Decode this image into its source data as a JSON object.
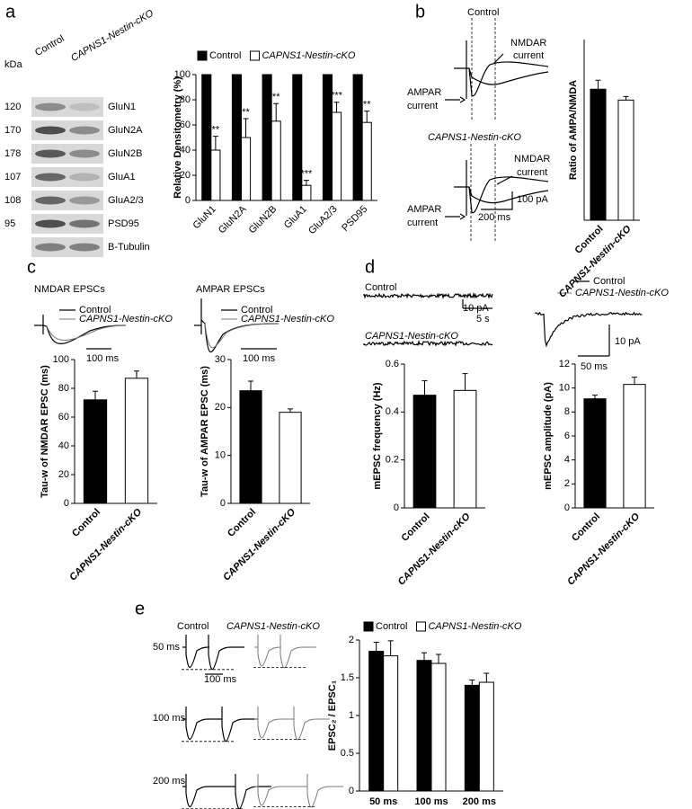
{
  "panel_labels": [
    "a",
    "b",
    "c",
    "d",
    "e"
  ],
  "blot": {
    "header": [
      "Control",
      "CAPNS1-Nestin-cKO"
    ],
    "unit": "kDa",
    "kda": [
      "120",
      "170",
      "178",
      "107",
      "108",
      "95"
    ],
    "proteins": [
      "GluN1",
      "GluN2A",
      "GluN2B",
      "GluA1",
      "GluA2/3",
      "PSD95",
      "B-Tubulin"
    ]
  },
  "panel_b_traces": [
    "Control",
    "NMDAR",
    "current",
    "AMPAR",
    "current",
    "CAPNS1-Nestin-cKO",
    "NMDAR",
    "current",
    "AMPAR",
    "current",
    "100 pA",
    "200 ms"
  ],
  "panel_c_traces": {
    "titles": [
      "NMDAR EPSCs",
      "AMPAR EPSCs"
    ],
    "legend": [
      "Control",
      "CAPNS1-Nestin-cKO"
    ],
    "scale": "100 ms"
  },
  "panel_d_traces": [
    "Control",
    "CAPNS1-Nestin-cKO",
    "10 pA",
    "5 s",
    "Control",
    "CAPNS1-Nestin-cKO",
    "10 pA",
    "50 ms"
  ],
  "panel_e_traces": {
    "headers": [
      "Control",
      "CAPNS1-Nestin-cKO"
    ],
    "intervals": [
      "50 ms",
      "100 ms",
      "200 ms"
    ],
    "scale": "100 ms"
  },
  "chart_data": [
    {
      "type": "bar",
      "ylabel": "Relative Densitometry (%)",
      "categories": [
        "GluN1",
        "GluN2A",
        "GluN2B",
        "GluA1",
        "GluA2/3",
        "PSD95"
      ],
      "series": [
        {
          "name": "Control",
          "color": "#000000",
          "values": [
            100,
            100,
            100,
            100,
            100,
            100
          ]
        },
        {
          "name": "CAPNS1-Nestin-cKO",
          "color": "#ffffff",
          "values": [
            40,
            50,
            63,
            12,
            70,
            62
          ],
          "errors": [
            11,
            15,
            14,
            4,
            8,
            9
          ]
        }
      ],
      "annotations": [
        "**",
        "**",
        "**",
        "***",
        "***",
        "**"
      ],
      "ylim": [
        0,
        100
      ],
      "yticks": [
        0,
        20,
        40,
        60,
        80,
        100
      ]
    },
    {
      "type": "bar",
      "ylabel": "Ratio of AMPA/NMDA",
      "categories": [
        "Control",
        "CAPNS1-Nestin-cKO"
      ],
      "values": [
        1.45,
        1.33
      ],
      "errors": [
        0.1,
        0.04
      ],
      "colors": [
        "#000000",
        "#ffffff"
      ],
      "ylim": [
        0,
        2
      ]
    },
    {
      "type": "bar",
      "ylabel": "Tau-w of NMDAR EPSC (ms)",
      "categories": [
        "Control",
        "CAPNS1-Nestin-cKO"
      ],
      "values": [
        72,
        87
      ],
      "errors": [
        6,
        5
      ],
      "colors": [
        "#000000",
        "#ffffff"
      ],
      "ylim": [
        0,
        100
      ],
      "yticks": [
        0,
        20,
        40,
        60,
        80,
        100
      ]
    },
    {
      "type": "bar",
      "ylabel": "Tau-w of AMPAR EPSC (ms)",
      "categories": [
        "Control",
        "CAPNS1-Nestin-cKO"
      ],
      "values": [
        23.5,
        19
      ],
      "errors": [
        2,
        0.7
      ],
      "colors": [
        "#000000",
        "#ffffff"
      ],
      "ylim": [
        0,
        30
      ],
      "yticks": [
        0,
        10,
        20,
        30
      ]
    },
    {
      "type": "bar",
      "ylabel": "mEPSC frequency (Hz)",
      "categories": [
        "Control",
        "CAPNS1-Nestin-cKO"
      ],
      "values": [
        0.47,
        0.49
      ],
      "errors": [
        0.06,
        0.07
      ],
      "colors": [
        "#000000",
        "#ffffff"
      ],
      "ylim": [
        0,
        0.6
      ],
      "yticks": [
        0,
        0.2,
        0.4,
        0.6
      ]
    },
    {
      "type": "bar",
      "ylabel": "mEPSC amplitude (pA)",
      "categories": [
        "Control",
        "CAPNS1-Nestin-cKO"
      ],
      "values": [
        9.1,
        10.3
      ],
      "errors": [
        0.3,
        0.6
      ],
      "colors": [
        "#000000",
        "#ffffff"
      ],
      "ylim": [
        0,
        12
      ],
      "yticks": [
        0,
        2,
        4,
        6,
        8,
        10,
        12
      ]
    },
    {
      "type": "bar",
      "ylabel": "EPSC₂ / EPSC₁",
      "categories": [
        "50 ms",
        "100 ms",
        "200 ms"
      ],
      "series": [
        {
          "name": "Control",
          "color": "#000000",
          "values": [
            1.85,
            1.73,
            1.4
          ],
          "errors": [
            0.12,
            0.1,
            0.07
          ]
        },
        {
          "name": "CAPNS1-Nestin-cKO",
          "color": "#ffffff",
          "values": [
            1.79,
            1.69,
            1.44
          ],
          "errors": [
            0.2,
            0.12,
            0.12
          ]
        }
      ],
      "ylim": [
        0,
        2
      ],
      "yticks": [
        0,
        0.5,
        1,
        1.5,
        2
      ]
    }
  ]
}
